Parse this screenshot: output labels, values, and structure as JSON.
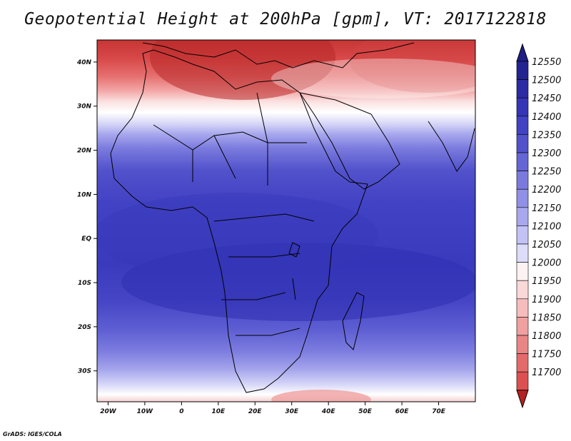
{
  "title": "Geopotential Height at 200hPa [gpm], VT: 2017122818",
  "credit": "GrADS: IGES/COLA",
  "map": {
    "lon_range": [
      -23,
      80
    ],
    "lat_range": [
      -37,
      45
    ],
    "lat_ticks": [
      {
        "value": 40,
        "label": "40N"
      },
      {
        "value": 30,
        "label": "30N"
      },
      {
        "value": 20,
        "label": "20N"
      },
      {
        "value": 10,
        "label": "10N"
      },
      {
        "value": 0,
        "label": "EQ"
      },
      {
        "value": -10,
        "label": "10S"
      },
      {
        "value": -20,
        "label": "20S"
      },
      {
        "value": -30,
        "label": "30S"
      }
    ],
    "lon_ticks": [
      {
        "value": -20,
        "label": "20W"
      },
      {
        "value": -10,
        "label": "10W"
      },
      {
        "value": 0,
        "label": "0"
      },
      {
        "value": 10,
        "label": "10E"
      },
      {
        "value": 20,
        "label": "20E"
      },
      {
        "value": 30,
        "label": "30E"
      },
      {
        "value": 40,
        "label": "40E"
      },
      {
        "value": 50,
        "label": "50E"
      },
      {
        "value": 60,
        "label": "60E"
      },
      {
        "value": 70,
        "label": "70E"
      }
    ]
  },
  "colorbar": {
    "levels": [
      {
        "label": "12550",
        "color": "#232391"
      },
      {
        "label": "12500",
        "color": "#2b2ba6"
      },
      {
        "label": "12450",
        "color": "#3535b8"
      },
      {
        "label": "12400",
        "color": "#4242c4"
      },
      {
        "label": "12350",
        "color": "#5252cc"
      },
      {
        "label": "12300",
        "color": "#6565d6"
      },
      {
        "label": "12250",
        "color": "#7a7ade"
      },
      {
        "label": "12200",
        "color": "#9090e6"
      },
      {
        "label": "12150",
        "color": "#a8a8ee"
      },
      {
        "label": "12100",
        "color": "#c2c2f5"
      },
      {
        "label": "12050",
        "color": "#ddddfa"
      },
      {
        "label": "12000",
        "color": "#fdf2f2"
      },
      {
        "label": "11950",
        "color": "#fbd8d8"
      },
      {
        "label": "11900",
        "color": "#f7bcbc"
      },
      {
        "label": "11850",
        "color": "#f0a0a0"
      },
      {
        "label": "11800",
        "color": "#ea8585"
      },
      {
        "label": "11750",
        "color": "#e46a6a"
      },
      {
        "label": "11700",
        "color": "#dd5050"
      }
    ],
    "top_arrow_color": "#1e1e86",
    "bottom_arrow_color": "#b52020"
  }
}
